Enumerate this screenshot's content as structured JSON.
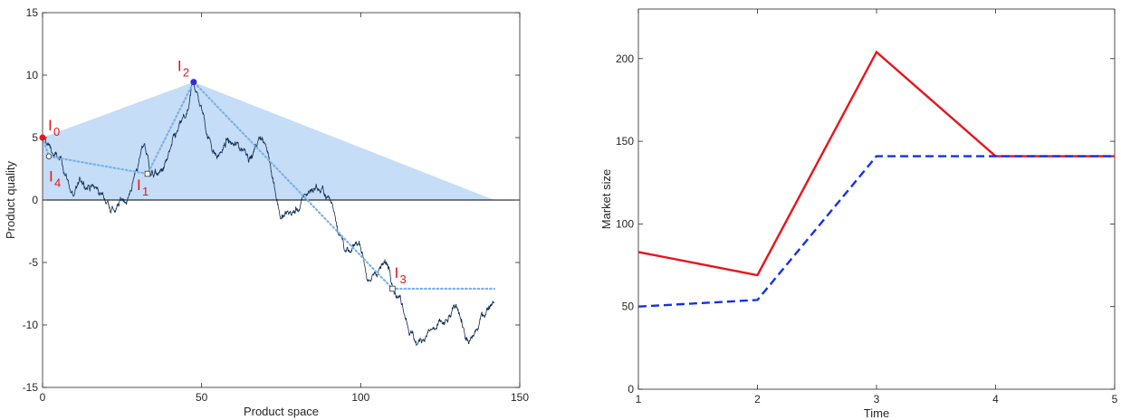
{
  "colors": {
    "hull_fill": "#c5ddf6",
    "path_line": "#0d2b52",
    "dotted_line": "#7cb1e6",
    "zero_line": "#000000",
    "red": "#e8141b",
    "blue": "#1432e8",
    "marker_blue": "#3a2bd1",
    "axis": "#262626"
  },
  "chart_data": [
    {
      "type": "line",
      "title": "",
      "xlabel": "Product space",
      "ylabel": "Product quality",
      "xlim": [
        0,
        150
      ],
      "ylim": [
        -15,
        15
      ],
      "xticks": [
        "0",
        "50",
        "100",
        "150"
      ],
      "yticks": [
        "-15",
        "-10",
        "-5",
        "0",
        "5",
        "10",
        "15"
      ],
      "grid": false,
      "zero_line": true,
      "convex_hull": [
        [
          0,
          5
        ],
        [
          47.5,
          9.45
        ],
        [
          142,
          0
        ],
        [
          0,
          0
        ]
      ],
      "random_walk": {
        "x_range": [
          0,
          142
        ],
        "anchors": [
          [
            0,
            5.0
          ],
          [
            3,
            3.8
          ],
          [
            7,
            2.0
          ],
          [
            10,
            0.4
          ],
          [
            15,
            0.9
          ],
          [
            20,
            -0.3
          ],
          [
            24,
            -0.4
          ],
          [
            27,
            0.2
          ],
          [
            30,
            2.8
          ],
          [
            32,
            4.5
          ],
          [
            34,
            2.0
          ],
          [
            37,
            2.3
          ],
          [
            40,
            4.0
          ],
          [
            43,
            6.2
          ],
          [
            46,
            7.5
          ],
          [
            47.5,
            9.45
          ],
          [
            49,
            8.0
          ],
          [
            52,
            5.0
          ],
          [
            55,
            3.5
          ],
          [
            58,
            4.8
          ],
          [
            62,
            4.0
          ],
          [
            66,
            3.5
          ],
          [
            69,
            5.0
          ],
          [
            72,
            2.0
          ],
          [
            75,
            -1.5
          ],
          [
            79,
            -1.0
          ],
          [
            82,
            0.4
          ],
          [
            86,
            1.3
          ],
          [
            90,
            0.2
          ],
          [
            94,
            -3.0
          ],
          [
            97,
            -4.2
          ],
          [
            100,
            -3.8
          ],
          [
            103,
            -6.5
          ],
          [
            106,
            -5.4
          ],
          [
            110,
            -7.0
          ],
          [
            114,
            -9.5
          ],
          [
            118,
            -11.5
          ],
          [
            121,
            -10.6
          ],
          [
            124,
            -10.0
          ],
          [
            127,
            -9.6
          ],
          [
            131,
            -9.0
          ],
          [
            134,
            -11.5
          ],
          [
            137,
            -10.3
          ],
          [
            140,
            -8.8
          ],
          [
            142,
            -8.2
          ]
        ],
        "roughness": 0.55
      },
      "dotted_path": [
        [
          0,
          5.0
        ],
        [
          2,
          3.5
        ],
        [
          33,
          2.1
        ],
        [
          47.5,
          9.45
        ],
        [
          110,
          -7.1
        ],
        [
          142,
          -7.1
        ]
      ],
      "markers": [
        {
          "label": "I",
          "sub": "0",
          "x": 0,
          "y": 5.0,
          "style": "filled-red",
          "label_dx": 6,
          "label_dy": -8
        },
        {
          "label": "I",
          "sub": "1",
          "x": 33,
          "y": 2.1,
          "style": "open-square",
          "label_dx": -12,
          "label_dy": 18
        },
        {
          "label": "I",
          "sub": "2",
          "x": 47.5,
          "y": 9.45,
          "style": "filled-blue",
          "label_dx": -18,
          "label_dy": -12
        },
        {
          "label": "I",
          "sub": "3",
          "x": 110,
          "y": -7.1,
          "style": "open-square",
          "label_dx": 2,
          "label_dy": -12
        },
        {
          "label": "I",
          "sub": "4",
          "x": 2,
          "y": 3.5,
          "style": "open-circle",
          "label_dx": 0,
          "label_dy": 28
        }
      ]
    },
    {
      "type": "line",
      "title": "",
      "xlabel": "Time",
      "ylabel": "Market size",
      "xlim": [
        1,
        5
      ],
      "ylim": [
        0,
        230
      ],
      "xticks": [
        "1",
        "2",
        "3",
        "4",
        "5"
      ],
      "yticks": [
        "0",
        "50",
        "100",
        "150",
        "200"
      ],
      "grid": false,
      "series": [
        {
          "style": "solid",
          "color": "#e8141b",
          "x": [
            1,
            2,
            3,
            4,
            5
          ],
          "values": [
            83,
            69,
            204,
            141,
            141
          ]
        },
        {
          "style": "dashed",
          "color": "#1432e8",
          "x": [
            1,
            2,
            3,
            4,
            5
          ],
          "values": [
            50,
            54,
            141,
            141,
            141
          ]
        }
      ]
    }
  ]
}
